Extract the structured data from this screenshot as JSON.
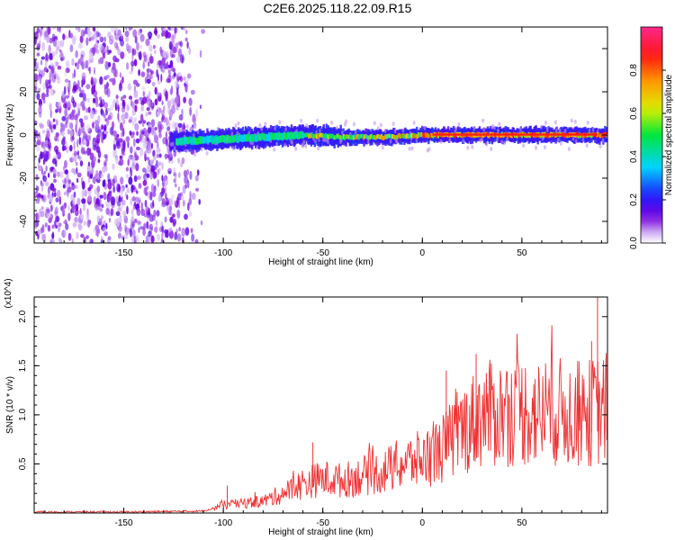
{
  "title": "C2E6.2025.118.22.09.R15",
  "chart_data": [
    {
      "type": "heatmap",
      "xlabel": "Height of straight line (km)",
      "ylabel": "Frequency (Hz)",
      "xlim": [
        -195,
        93
      ],
      "ylim": [
        -50,
        50
      ],
      "xticks": [
        -150,
        -100,
        -50,
        0,
        50
      ],
      "yticks": [
        -40,
        -20,
        0,
        20,
        40
      ],
      "description_series": [
        {
          "name": "noise region",
          "x_range": [
            -195,
            -110
          ],
          "y_range": [
            -50,
            50
          ],
          "normalized_amplitude": 0.1
        },
        {
          "name": "signal band",
          "x_range": [
            -127,
            93
          ],
          "y_center": 0,
          "y_halfwidth": 3,
          "normalized_amplitude": 0.9
        }
      ],
      "signal_centerline": {
        "x": [
          -127,
          -100,
          -80,
          -60,
          -40,
          -20,
          0,
          20,
          40,
          60,
          80,
          93
        ],
        "y": [
          -3,
          -2,
          -1,
          0,
          -1,
          -1,
          0,
          0,
          0,
          0,
          0,
          0
        ]
      },
      "colorbar": {
        "label": "Normalized spectral amplitude",
        "range": [
          0,
          1
        ],
        "ticks": [
          "0.0",
          "0.2",
          "0.4",
          "0.6",
          "0.8"
        ]
      }
    },
    {
      "type": "line",
      "xlabel": "Height of straight line (km)",
      "ylabel": "SNR (10 * v/v)",
      "multiplier": "(x10^4)",
      "xlim": [
        -195,
        93
      ],
      "ylim": [
        0,
        2.2
      ],
      "xticks": [
        -150,
        -100,
        -50,
        0,
        50
      ],
      "yticks": [
        0.5,
        1.0,
        1.5,
        2.0
      ],
      "ytick_labels": [
        "0.5",
        "1.0",
        "1.5",
        "2.0"
      ],
      "series": [
        {
          "color": "#ee3333",
          "x": [
            -195,
            -150,
            -110,
            -100,
            -90,
            -80,
            -70,
            -60,
            -50,
            -40,
            -30,
            -20,
            -10,
            0,
            10,
            20,
            30,
            40,
            50,
            60,
            70,
            80,
            90,
            93
          ],
          "y": [
            0.01,
            0.01,
            0.02,
            0.08,
            0.1,
            0.12,
            0.2,
            0.3,
            0.35,
            0.33,
            0.38,
            0.42,
            0.5,
            0.55,
            0.65,
            0.85,
            1.0,
            1.02,
            1.05,
            1.0,
            1.03,
            1.0,
            1.05,
            1.08
          ]
        }
      ]
    }
  ]
}
